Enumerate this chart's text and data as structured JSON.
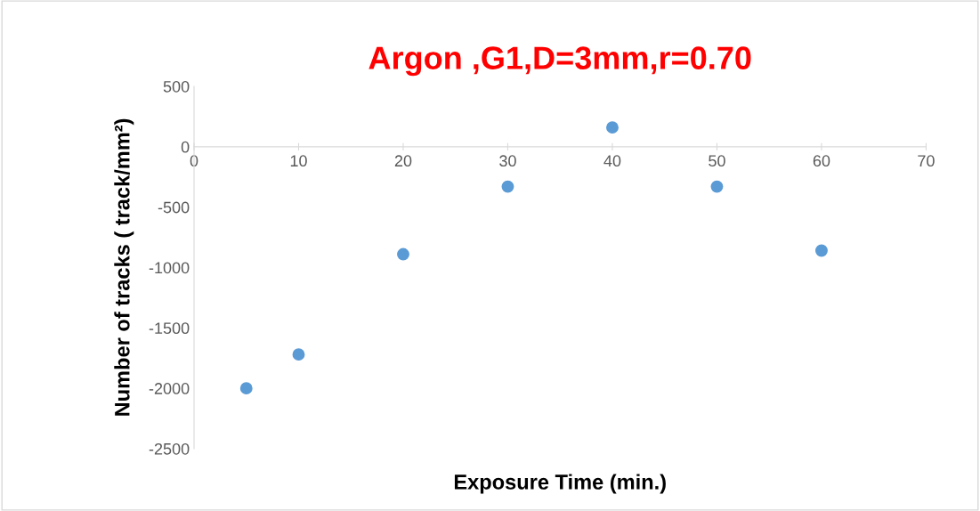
{
  "chart_data": {
    "type": "scatter",
    "title": "Argon ,G1,D=3mm,r=0.70",
    "xlabel": "Exposure Time (min.)",
    "ylabel": "Number of tracks ( track/mm²)",
    "x": [
      5,
      10,
      20,
      30,
      40,
      50,
      60
    ],
    "series": [
      {
        "color": "#5b9bd5",
        "values": [
          -2000,
          -1720,
          -890,
          -330,
          160,
          -330,
          -860
        ]
      }
    ],
    "xlim": [
      0,
      70
    ],
    "xticks": [
      0,
      10,
      20,
      30,
      40,
      50,
      60,
      70
    ],
    "ylim": [
      -2500,
      500
    ],
    "yticks": [
      -2500,
      -2000,
      -1500,
      -1000,
      -500,
      0,
      500
    ],
    "grid": false,
    "legend": false,
    "marker": "circle"
  }
}
